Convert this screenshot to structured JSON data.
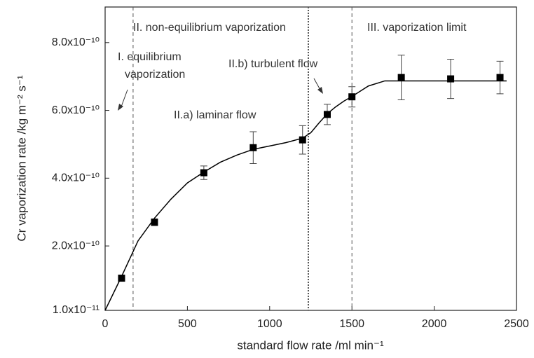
{
  "chart_data": {
    "type": "scatter",
    "xlabel": "standard flow rate /ml min⁻¹",
    "ylabel": "Cr vaporization rate /kg m⁻² s⁻¹",
    "xlim": [
      0,
      2500
    ],
    "xticks": [
      0,
      500,
      1000,
      1500,
      2000,
      2500
    ],
    "ylim": [
      1e-11,
      9.05e-10
    ],
    "yticks": [
      {
        "value": 1e-11,
        "label": "1.0x10⁻¹¹"
      },
      {
        "value": 2e-10,
        "label": "2.0x10⁻¹⁰"
      },
      {
        "value": 4e-10,
        "label": "4.0x10⁻¹⁰"
      },
      {
        "value": 6e-10,
        "label": "6.0x10⁻¹⁰"
      },
      {
        "value": 8e-10,
        "label": "8.0x10⁻¹⁰"
      }
    ],
    "series": [
      {
        "color": "#000000",
        "x": [
          100,
          300,
          600,
          900,
          1200,
          1350,
          1500,
          1800,
          2100,
          2400
        ],
        "values": [
          1.05e-10,
          2.7e-10,
          4.16e-10,
          4.9e-10,
          5.13e-10,
          5.88e-10,
          6.4e-10,
          6.97e-10,
          6.93e-10,
          6.97e-10
        ],
        "errors": [
          0,
          1e-11,
          2e-11,
          4.7e-11,
          4.2e-11,
          3e-11,
          3e-11,
          6.6e-11,
          5.8e-11,
          4.8e-11
        ]
      },
      {
        "type": "line",
        "color": "#000000",
        "x": [
          0,
          100,
          200,
          300,
          400,
          500,
          600,
          700,
          800,
          900,
          1000,
          1100,
          1200,
          1250,
          1300,
          1350,
          1400,
          1450,
          1500,
          1600,
          1700,
          1800,
          2000,
          2200,
          2440
        ],
        "values": [
          1e-11,
          1.1e-10,
          2.15e-10,
          2.82e-10,
          3.38e-10,
          3.86e-10,
          4.18e-10,
          4.47e-10,
          4.68e-10,
          4.85e-10,
          4.95e-10,
          5.05e-10,
          5.18e-10,
          5.34e-10,
          5.63e-10,
          5.9e-10,
          6.1e-10,
          6.27e-10,
          6.41e-10,
          6.72e-10,
          6.87e-10,
          6.87e-10,
          6.87e-10,
          6.87e-10,
          6.87e-10
        ]
      }
    ],
    "dividers": [
      {
        "x": 170,
        "style": "dashed"
      },
      {
        "x": 1235,
        "style": "dotted"
      },
      {
        "x": 1500,
        "style": "dashed"
      }
    ],
    "annotations": [
      {
        "lines": [
          "II. non-equilibrium vaporization"
        ]
      },
      {
        "lines": [
          "III. vaporization limit"
        ]
      },
      {
        "lines": [
          "I. equilibrium",
          "vaporization"
        ]
      },
      {
        "lines": [
          "II.b) turbulent flow"
        ]
      },
      {
        "lines": [
          "II.a) laminar flow"
        ]
      }
    ]
  }
}
